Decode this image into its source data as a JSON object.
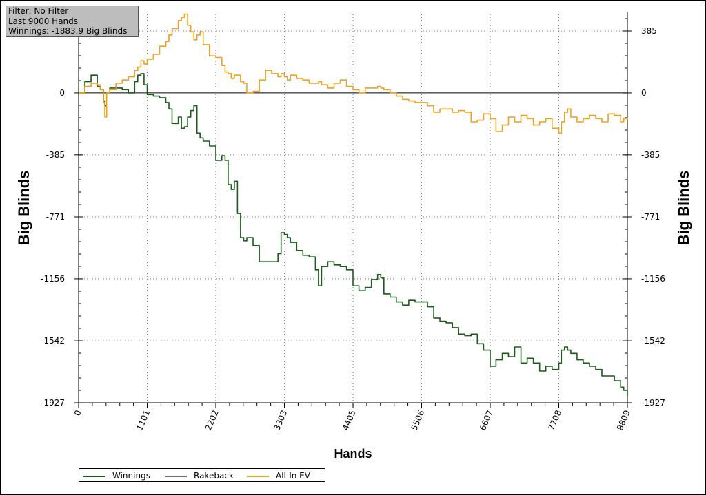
{
  "info_box": {
    "filter": "Filter: No Filter",
    "last_hands": "Last  9000 Hands",
    "winnings": "Winnings: -1883.9 Big Blinds"
  },
  "chart_data": {
    "type": "line",
    "xlabel": "Hands",
    "ylabel_left": "Big Blinds",
    "ylabel_right": "Big Blinds",
    "xlim": [
      0,
      8809
    ],
    "ylim": [
      -1927,
      500
    ],
    "x_ticks": [
      0,
      1101,
      2202,
      3303,
      4405,
      5506,
      6607,
      7708,
      8809
    ],
    "y_ticks": [
      385,
      0,
      -385,
      -771,
      -1156,
      -1542,
      -1927
    ],
    "grid": true,
    "legend_position": "bottom-left",
    "series": [
      {
        "name": "Winnings",
        "color": "#1a5c1a",
        "x": [
          0,
          100,
          200,
          300,
          350,
          400,
          420,
          450,
          500,
          600,
          700,
          800,
          900,
          950,
          1000,
          1050,
          1101,
          1200,
          1300,
          1400,
          1450,
          1500,
          1600,
          1650,
          1700,
          1750,
          1800,
          1850,
          1900,
          1950,
          2000,
          2100,
          2202,
          2300,
          2350,
          2400,
          2450,
          2500,
          2550,
          2600,
          2650,
          2700,
          2800,
          2900,
          3000,
          3100,
          3200,
          3250,
          3303,
          3350,
          3400,
          3500,
          3600,
          3700,
          3800,
          3850,
          3900,
          3950,
          4000,
          4100,
          4200,
          4300,
          4405,
          4500,
          4600,
          4700,
          4800,
          4850,
          4900,
          5000,
          5100,
          5200,
          5300,
          5400,
          5506,
          5600,
          5700,
          5800,
          5900,
          6000,
          6100,
          6200,
          6300,
          6400,
          6500,
          6607,
          6700,
          6800,
          6900,
          7000,
          7100,
          7200,
          7300,
          7400,
          7500,
          7600,
          7708,
          7750,
          7800,
          7850,
          7900,
          8000,
          8100,
          8200,
          8300,
          8400,
          8500,
          8600,
          8700,
          8750,
          8809
        ],
        "values": [
          0,
          70,
          110,
          40,
          20,
          -50,
          -80,
          0,
          30,
          30,
          20,
          0,
          70,
          110,
          120,
          50,
          -10,
          -20,
          -30,
          -60,
          -100,
          -190,
          -150,
          -220,
          -210,
          -150,
          -110,
          -80,
          -250,
          -280,
          -300,
          -330,
          -420,
          -390,
          -420,
          -570,
          -600,
          -550,
          -750,
          -900,
          -920,
          -900,
          -950,
          -1050,
          -1050,
          -1050,
          -1000,
          -870,
          -880,
          -900,
          -930,
          -980,
          -1010,
          -1020,
          -1100,
          -1200,
          -1080,
          -1080,
          -1050,
          -1070,
          -1080,
          -1100,
          -1200,
          -1230,
          -1210,
          -1160,
          -1130,
          -1150,
          -1250,
          -1270,
          -1300,
          -1320,
          -1290,
          -1300,
          -1300,
          -1330,
          -1400,
          -1420,
          -1430,
          -1460,
          -1500,
          -1510,
          -1500,
          -1560,
          -1600,
          -1700,
          -1660,
          -1620,
          -1640,
          -1580,
          -1680,
          -1650,
          -1680,
          -1730,
          -1700,
          -1720,
          -1680,
          -1600,
          -1580,
          -1600,
          -1620,
          -1660,
          -1680,
          -1700,
          -1720,
          -1760,
          -1760,
          -1790,
          -1830,
          -1850,
          -1884
        ]
      },
      {
        "name": "Rakeback",
        "color": "#6c6c8a",
        "x": [],
        "values": []
      },
      {
        "name": "All-In EV",
        "color": "#f0a020",
        "x": [
          0,
          100,
          200,
          300,
          350,
          400,
          420,
          450,
          500,
          600,
          700,
          800,
          900,
          950,
          1000,
          1050,
          1101,
          1200,
          1300,
          1400,
          1450,
          1500,
          1600,
          1650,
          1700,
          1750,
          1800,
          1850,
          1900,
          1950,
          2000,
          2100,
          2202,
          2300,
          2350,
          2400,
          2450,
          2500,
          2550,
          2600,
          2650,
          2700,
          2800,
          2900,
          3000,
          3100,
          3200,
          3250,
          3303,
          3350,
          3400,
          3500,
          3600,
          3700,
          3800,
          3850,
          3900,
          3950,
          4000,
          4100,
          4200,
          4300,
          4405,
          4500,
          4600,
          4700,
          4800,
          4850,
          4900,
          5000,
          5100,
          5200,
          5300,
          5400,
          5506,
          5600,
          5700,
          5800,
          5900,
          6000,
          6100,
          6200,
          6300,
          6400,
          6500,
          6607,
          6700,
          6800,
          6900,
          7000,
          7100,
          7200,
          7300,
          7400,
          7500,
          7600,
          7708,
          7750,
          7800,
          7850,
          7900,
          8000,
          8100,
          8200,
          8300,
          8400,
          8500,
          8600,
          8700,
          8750,
          8809
        ],
        "values": [
          0,
          40,
          60,
          50,
          20,
          -60,
          -150,
          0,
          20,
          60,
          80,
          100,
          140,
          160,
          200,
          180,
          210,
          240,
          290,
          320,
          360,
          400,
          450,
          470,
          490,
          420,
          380,
          330,
          360,
          380,
          300,
          230,
          220,
          170,
          130,
          120,
          90,
          110,
          110,
          70,
          60,
          0,
          10,
          80,
          140,
          120,
          100,
          120,
          100,
          80,
          110,
          90,
          80,
          60,
          60,
          70,
          50,
          50,
          30,
          60,
          80,
          40,
          20,
          0,
          30,
          30,
          40,
          30,
          20,
          0,
          -20,
          -40,
          -50,
          -60,
          -60,
          -80,
          -120,
          -100,
          -100,
          -120,
          -110,
          -120,
          -180,
          -170,
          -130,
          -160,
          -240,
          -200,
          -150,
          -180,
          -140,
          -160,
          -200,
          -180,
          -160,
          -220,
          -250,
          -180,
          -120,
          -100,
          -150,
          -180,
          -160,
          -140,
          -160,
          -180,
          -130,
          -140,
          -180,
          -160,
          -165
        ]
      }
    ]
  }
}
